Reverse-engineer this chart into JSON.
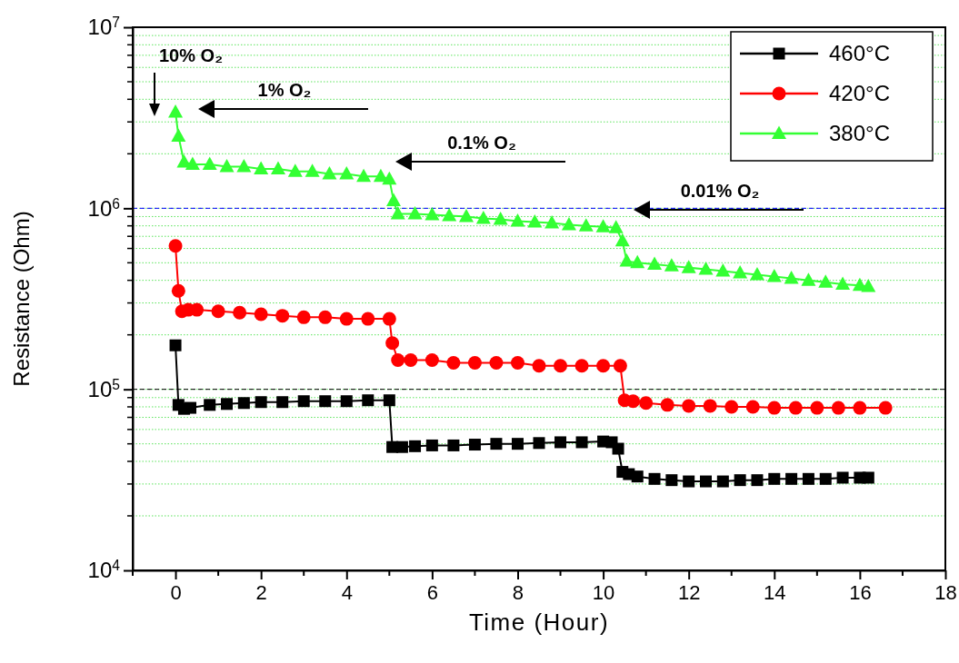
{
  "chart_data": {
    "type": "line",
    "xlabel": "Time (Hour)",
    "ylabel": "Resistance (Ohm)",
    "log": "y",
    "grid": "y",
    "legend": "top right",
    "xlim": [
      -1,
      18
    ],
    "xticks": [
      0,
      2,
      4,
      6,
      8,
      10,
      12,
      14,
      16,
      18
    ],
    "ylim": [
      10000,
      10000000
    ],
    "yticks": [
      {
        "value": 10000,
        "label": "10$^{4}$"
      },
      {
        "value": 20000,
        "label": null
      },
      {
        "value": 30000,
        "label": null
      },
      {
        "value": 40000,
        "label": null
      },
      {
        "value": 50000,
        "label": null
      },
      {
        "value": 60000,
        "label": null
      },
      {
        "value": 70000,
        "label": null
      },
      {
        "value": 80000,
        "label": null
      },
      {
        "value": 90000,
        "label": null
      },
      {
        "value": 100000,
        "label": "10$^{5}$"
      },
      {
        "value": 200000,
        "label": null
      },
      {
        "value": 300000,
        "label": null
      },
      {
        "value": 400000,
        "label": null
      },
      {
        "value": 500000,
        "label": null
      },
      {
        "value": 600000,
        "label": null
      },
      {
        "value": 700000,
        "label": null
      },
      {
        "value": 800000,
        "label": null
      },
      {
        "value": 900000,
        "label": null
      },
      {
        "value": 1000000,
        "label": "10$^{6}$"
      },
      {
        "value": 2000000,
        "label": null
      },
      {
        "value": 3000000,
        "label": null
      },
      {
        "value": 4000000,
        "label": null
      },
      {
        "value": 5000000,
        "label": null
      },
      {
        "value": 6000000,
        "label": null
      },
      {
        "value": 7000000,
        "label": null
      },
      {
        "value": 8000000,
        "label": null
      },
      {
        "value": 9000000,
        "label": null
      },
      {
        "value": 10000000,
        "label": "10$^{7}$"
      }
    ],
    "ref_lines": [
      {
        "axis": "y",
        "value": 1000000,
        "color": "#0000ff",
        "line_style": "dashed"
      },
      {
        "axis": "y",
        "value": 100000,
        "color": "#000000",
        "line_style": "dashed"
      }
    ],
    "annotations": [
      "10% O₂",
      "1% O₂",
      "0.1% O₂",
      "0.01% O₂"
    ],
    "series": [
      {
        "name": "460°C",
        "color": "#000000",
        "marker": "square",
        "x": [
          0,
          0.07,
          0.2,
          0.35,
          0.8,
          1.2,
          1.6,
          2,
          2.5,
          3,
          3.5,
          4,
          4.5,
          5,
          5.07,
          5.3,
          5.6,
          6,
          6.5,
          7,
          7.5,
          8,
          8.5,
          9,
          9.5,
          10,
          10.2,
          10.35,
          10.45,
          10.6,
          10.8,
          11.2,
          11.6,
          12,
          12.4,
          12.8,
          13.2,
          13.6,
          14,
          14.4,
          14.8,
          15.2,
          15.6,
          16,
          16.2
        ],
        "values": [
          175000,
          82000,
          78000,
          79000,
          82000,
          83000,
          84000,
          85000,
          85000,
          86000,
          86000,
          86000,
          87000,
          87000,
          48000,
          48000,
          48500,
          49000,
          49000,
          49500,
          50000,
          50000,
          50500,
          51000,
          51000,
          51500,
          51000,
          47000,
          35000,
          34000,
          33000,
          32000,
          31500,
          31000,
          31000,
          31000,
          31500,
          31500,
          32000,
          32000,
          32000,
          32000,
          32500,
          32500,
          32500
        ]
      },
      {
        "name": "420°C",
        "color": "#ff0000",
        "marker": "circle",
        "x": [
          0,
          0.07,
          0.15,
          0.3,
          0.5,
          1,
          1.5,
          2,
          2.5,
          3,
          3.5,
          4,
          4.5,
          5,
          5.07,
          5.2,
          5.5,
          6,
          6.5,
          7,
          7.5,
          8,
          8.5,
          9,
          9.5,
          10,
          10.4,
          10.5,
          10.7,
          11,
          11.5,
          12,
          12.5,
          13,
          13.5,
          14,
          14.5,
          15,
          15.5,
          16,
          16.6
        ],
        "values": [
          620000,
          350000,
          270000,
          275000,
          275000,
          270000,
          265000,
          260000,
          255000,
          250000,
          250000,
          245000,
          245000,
          245000,
          180000,
          145000,
          145000,
          145000,
          140000,
          140000,
          140000,
          140000,
          135000,
          135000,
          135000,
          135000,
          135000,
          87000,
          86000,
          84000,
          82000,
          81000,
          81000,
          80000,
          80000,
          79000,
          79000,
          79000,
          79000,
          79000,
          79000
        ]
      },
      {
        "name": "380°C",
        "color": "#33ff33",
        "marker": "triangle",
        "x": [
          0,
          0.07,
          0.2,
          0.4,
          0.8,
          1.2,
          1.6,
          2,
          2.4,
          2.8,
          3.2,
          3.6,
          4,
          4.4,
          4.8,
          5,
          5.1,
          5.2,
          5.6,
          6,
          6.4,
          6.8,
          7.2,
          7.6,
          8,
          8.4,
          8.8,
          9.2,
          9.6,
          10,
          10.3,
          10.45,
          10.55,
          10.8,
          11.2,
          11.6,
          12,
          12.4,
          12.8,
          13.2,
          13.6,
          14,
          14.4,
          14.8,
          15.2,
          15.6,
          16,
          16.2
        ],
        "values": [
          3400000,
          2500000,
          1800000,
          1750000,
          1750000,
          1700000,
          1700000,
          1650000,
          1650000,
          1600000,
          1600000,
          1550000,
          1550000,
          1500000,
          1500000,
          1450000,
          1100000,
          930000,
          930000,
          920000,
          910000,
          900000,
          880000,
          870000,
          850000,
          840000,
          830000,
          810000,
          800000,
          790000,
          780000,
          660000,
          510000,
          500000,
          490000,
          480000,
          470000,
          460000,
          450000,
          440000,
          430000,
          420000,
          410000,
          400000,
          390000,
          380000,
          375000,
          370000
        ]
      }
    ]
  }
}
